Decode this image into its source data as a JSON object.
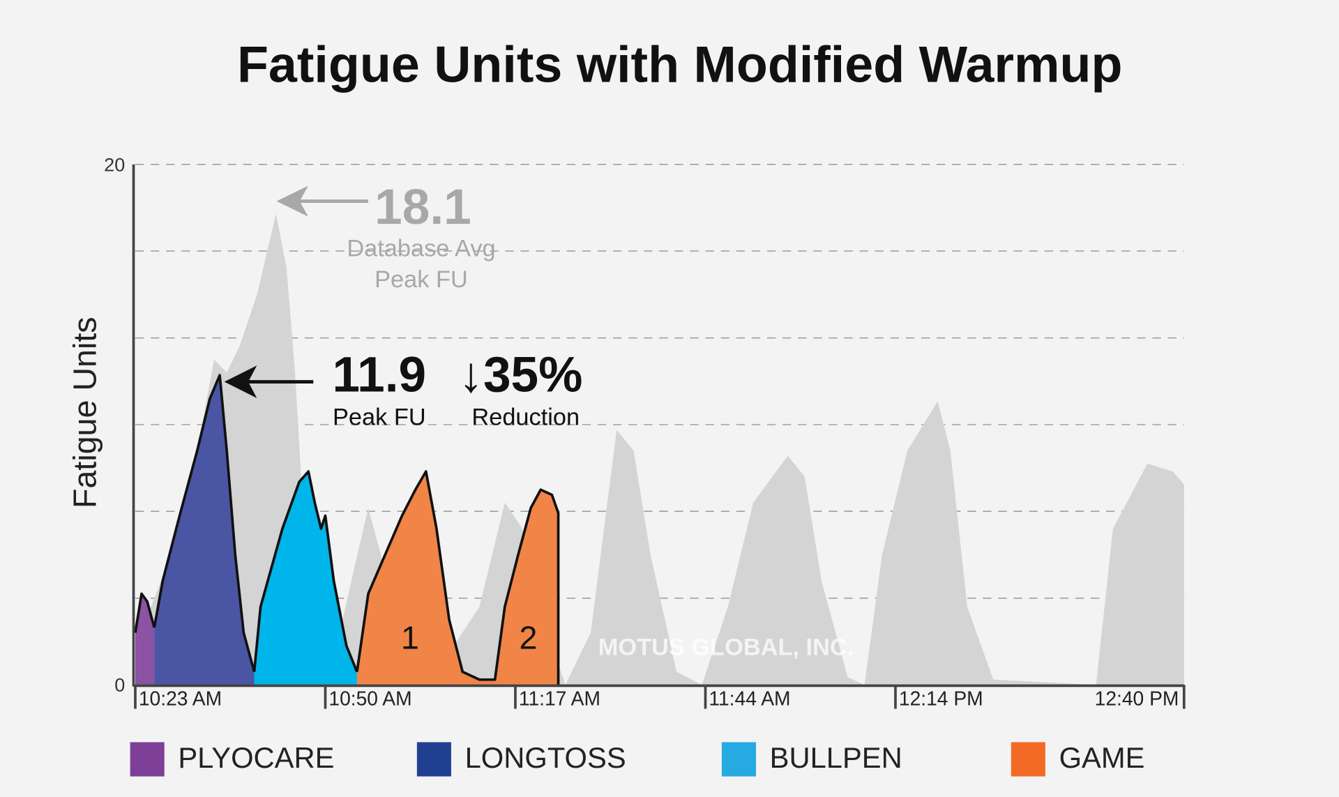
{
  "chart_data": {
    "type": "area",
    "title": "Fatigue Units with Modified Warmup",
    "y_label": "Fatigue Units",
    "ylim": [
      0,
      20
    ],
    "yticks": [
      0,
      20
    ],
    "ygrid": [
      3.33,
      6.67,
      10,
      13.33,
      16.67,
      20
    ],
    "xlim": [
      0,
      149
    ],
    "xticks": [
      {
        "value": 0,
        "label": "10:23 AM"
      },
      {
        "value": 27,
        "label": "10:50 AM"
      },
      {
        "value": 54,
        "label": "11:17 AM"
      },
      {
        "value": 81,
        "label": "11:44 AM"
      },
      {
        "value": 108,
        "label": "12:14 PM"
      },
      {
        "value": 149,
        "label": "12:40 PM"
      }
    ],
    "background": {
      "color": "#d4d4d4",
      "x": [
        0,
        1.5,
        5.1,
        8.8,
        11.2,
        13.0,
        14.8,
        17.3,
        20.0,
        21.5,
        22.7,
        24.0,
        25.8,
        28.2,
        30.7,
        33.1,
        34.9,
        36.7,
        39.2,
        41.6,
        48.9,
        52.5,
        55.0,
        58.6,
        61.1,
        64.7,
        68.4,
        70.8,
        73.2,
        76.9,
        80.5,
        84.2,
        87.8,
        92.7,
        95.1,
        97.5,
        101.2,
        103.6,
        106.1,
        109.7,
        114.0,
        115.8,
        118.2,
        121.9,
        136.5,
        138.9,
        143.8,
        147.4,
        149.0
      ],
      "values": [
        0,
        2.5,
        5,
        9,
        12.5,
        12,
        13,
        15,
        18.1,
        16,
        12,
        6,
        3,
        1,
        4,
        6.8,
        5,
        2,
        0.5,
        0,
        3,
        7,
        6,
        2,
        0,
        2,
        9.8,
        9,
        5,
        0.5,
        0,
        3,
        7,
        8.8,
        8,
        4,
        0.3,
        0,
        5,
        9,
        10.9,
        9,
        3,
        0.2,
        0,
        6,
        8.5,
        8.2,
        7.7
      ]
    },
    "series": [
      {
        "name": "PLYOCARE",
        "color": "#7e3f98",
        "fill": "#8c52a3",
        "x": [
          0,
          0.9,
          1.7,
          2.7
        ],
        "values": [
          2,
          3.5,
          3.2,
          2.2
        ]
      },
      {
        "name": "LONGTOSS",
        "color": "#213f91",
        "fill": "#4a56a3",
        "x": [
          2.7,
          3.9,
          6.3,
          8.8,
          10.6,
          12.0,
          13.0,
          14.2,
          15.4,
          16.9
        ],
        "values": [
          2.2,
          4,
          6.5,
          9,
          11,
          11.9,
          9,
          5,
          2,
          0.5
        ]
      },
      {
        "name": "BULLPEN",
        "color": "#27aae1",
        "fill": "#00b5e9",
        "x": [
          16.9,
          17.8,
          20.9,
          23.3,
          24.6,
          25.5,
          26.4,
          27.0,
          28.2,
          30.0,
          31.5
        ],
        "values": [
          0.5,
          3,
          6,
          7.8,
          8.2,
          7,
          6,
          6.5,
          4,
          1.5,
          0.5
        ]
      },
      {
        "name": "GAME",
        "color": "#f26a26",
        "fill": "#f18447",
        "x": [
          31.5,
          33.1,
          35.5,
          37.9,
          39.8,
          41.3,
          42.8,
          44.6,
          46.5,
          48.9,
          51.1,
          52.5,
          54.4,
          56.2,
          57.6,
          59.2,
          60.1
        ],
        "values": [
          0.5,
          3.5,
          5,
          6.5,
          7.5,
          8.2,
          6,
          2.5,
          0.5,
          0.2,
          0.2,
          3,
          5,
          6.8,
          7.5,
          7.3,
          6.6
        ]
      }
    ],
    "annotations": [
      "18.1",
      "Database Avg",
      "Peak FU",
      "11.9",
      "Peak FU",
      "↓35%",
      "Reduction",
      "1",
      "2",
      "MOTUS GLOBAL, INC."
    ]
  }
}
